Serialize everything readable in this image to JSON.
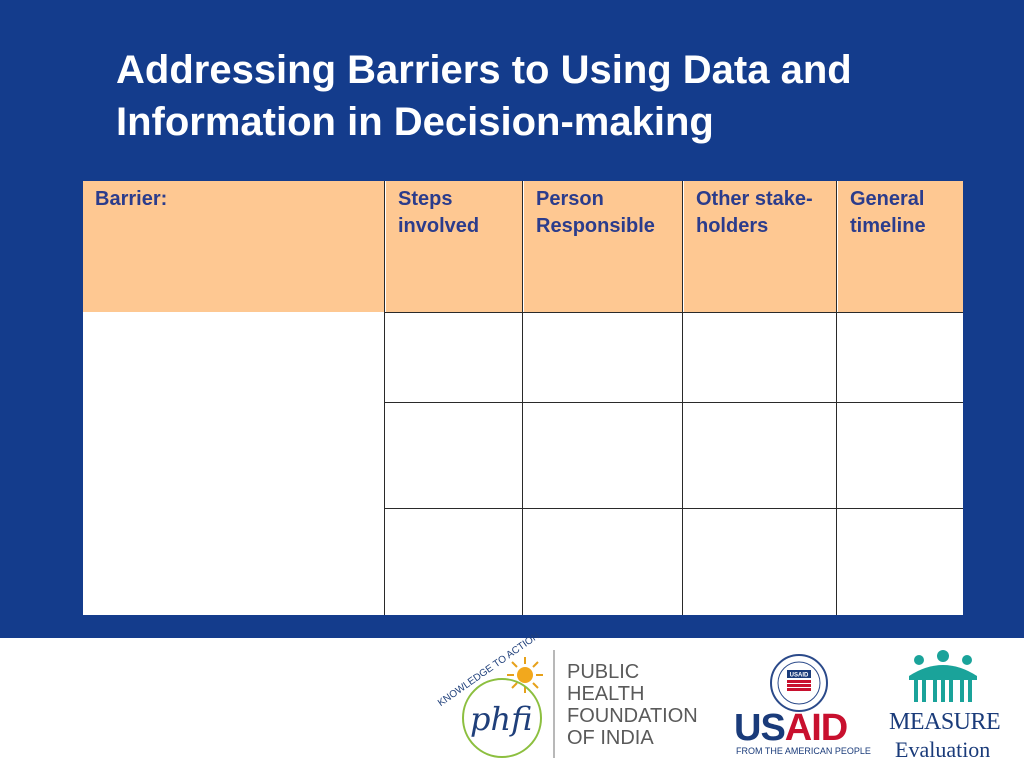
{
  "slide": {
    "title_line1": "Addressing Barriers to Using Data and",
    "title_line2": "Information in Decision-making"
  },
  "table": {
    "headers": [
      {
        "line1": "Barrier:",
        "line2": ""
      },
      {
        "line1": "Steps",
        "line2": "involved"
      },
      {
        "line1": "Person",
        "line2": "Responsible"
      },
      {
        "line1": "Other stake-",
        "line2": "holders"
      },
      {
        "line1": "General",
        "line2": "timeline"
      }
    ],
    "rows": [
      [
        "",
        "",
        "",
        "",
        ""
      ],
      [
        "",
        "",
        "",
        "",
        ""
      ],
      [
        "",
        "",
        "",
        "",
        ""
      ]
    ]
  },
  "footer": {
    "phfi": {
      "arc_text": "KNOWLEDGE TO ACTION",
      "logo_text": "phfi",
      "name_lines": [
        "PUBLIC",
        "HEALTH",
        "FOUNDATION",
        "OF INDIA"
      ]
    },
    "usaid": {
      "seal_text": "USAID",
      "logo_us": "US",
      "logo_aid": "AID",
      "tagline": "FROM THE AMERICAN PEOPLE"
    },
    "measure": {
      "name": "MEASURE",
      "sub": "Evaluation"
    }
  },
  "colors": {
    "slide_background": "#143c8c",
    "header_fill": "#fec892",
    "header_text": "#2b3c8c",
    "title_text": "#ffffff"
  }
}
